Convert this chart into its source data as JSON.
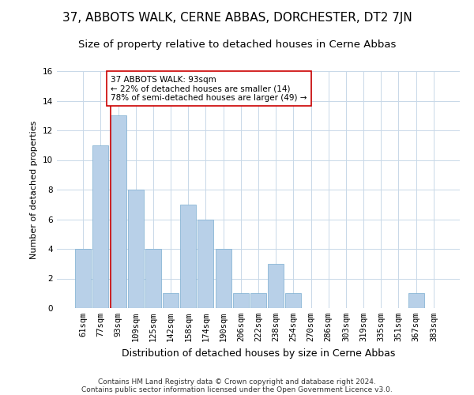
{
  "title": "37, ABBOTS WALK, CERNE ABBAS, DORCHESTER, DT2 7JN",
  "subtitle": "Size of property relative to detached houses in Cerne Abbas",
  "xlabel": "Distribution of detached houses by size in Cerne Abbas",
  "ylabel": "Number of detached properties",
  "categories": [
    "61sqm",
    "77sqm",
    "93sqm",
    "109sqm",
    "125sqm",
    "142sqm",
    "158sqm",
    "174sqm",
    "190sqm",
    "206sqm",
    "222sqm",
    "238sqm",
    "254sqm",
    "270sqm",
    "286sqm",
    "303sqm",
    "319sqm",
    "335sqm",
    "351sqm",
    "367sqm",
    "383sqm"
  ],
  "values": [
    4,
    11,
    13,
    8,
    4,
    1,
    7,
    6,
    4,
    1,
    1,
    3,
    1,
    0,
    0,
    0,
    0,
    0,
    0,
    1,
    0
  ],
  "bar_color": "#b8d0e8",
  "bar_edgecolor": "#7aadd0",
  "highlight_index": 2,
  "highlight_line_color": "#cc0000",
  "annotation_text": "37 ABBOTS WALK: 93sqm\n← 22% of detached houses are smaller (14)\n78% of semi-detached houses are larger (49) →",
  "annotation_box_edgecolor": "#cc0000",
  "ylim": [
    0,
    16
  ],
  "yticks": [
    0,
    2,
    4,
    6,
    8,
    10,
    12,
    14,
    16
  ],
  "footer1": "Contains HM Land Registry data © Crown copyright and database right 2024.",
  "footer2": "Contains public sector information licensed under the Open Government Licence v3.0.",
  "background_color": "#ffffff",
  "grid_color": "#c8d8e8",
  "title_fontsize": 11,
  "subtitle_fontsize": 9.5,
  "xlabel_fontsize": 9,
  "ylabel_fontsize": 8,
  "tick_fontsize": 7.5,
  "annotation_fontsize": 7.5,
  "footer_fontsize": 6.5
}
